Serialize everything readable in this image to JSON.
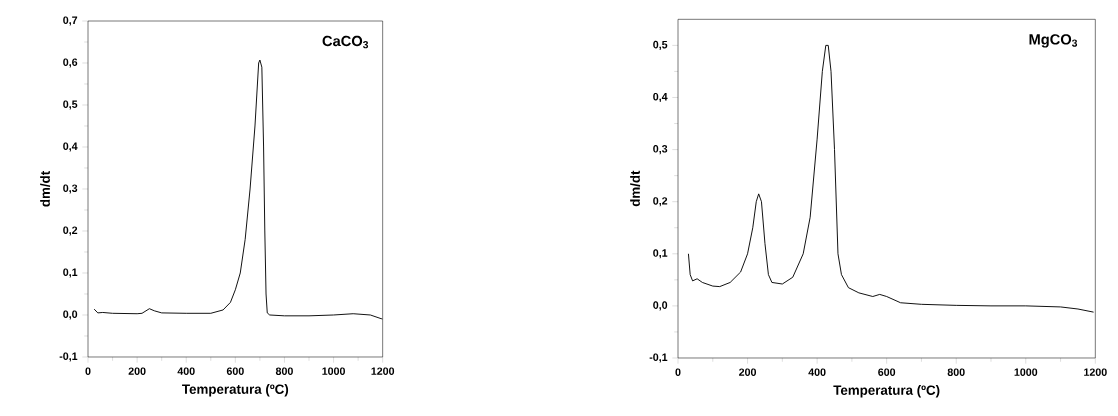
{
  "chart_data": [
    {
      "type": "line",
      "title": "CaCO$_{3}$",
      "xlabel": "Temperatura (ºC)",
      "ylabel": "dm/dt",
      "xlim": [
        0,
        1200
      ],
      "ylim": [
        -0.1,
        0.7
      ],
      "xticks": [
        0,
        200,
        400,
        600,
        800,
        1000,
        1200
      ],
      "yticks": [
        {
          "value": -0.1,
          "label": "-0,1"
        },
        {
          "value": 0,
          "label": "0,0"
        },
        {
          "value": 0.1,
          "label": "0,1"
        },
        {
          "value": 0.2,
          "label": "0,2"
        },
        {
          "value": 0.3,
          "label": "0,3"
        },
        {
          "value": 0.4,
          "label": "0,4"
        },
        {
          "value": 0.5,
          "label": "0,5"
        },
        {
          "value": 0.6,
          "label": "0,6"
        },
        {
          "value": 0.7,
          "label": "0,7"
        }
      ],
      "grid": false,
      "marker": "none",
      "line_style": "solid",
      "series": [
        {
          "color": "#000000",
          "x": [
            25,
            40,
            60,
            100,
            200,
            220,
            250,
            270,
            300,
            400,
            500,
            550,
            580,
            600,
            620,
            640,
            660,
            680,
            695,
            700,
            708,
            715,
            720,
            725,
            730,
            740,
            800,
            900,
            1000,
            1080,
            1150,
            1200
          ],
          "values": [
            0.014,
            0.005,
            0.006,
            0.004,
            0.003,
            0.004,
            0.015,
            0.01,
            0.005,
            0.004,
            0.004,
            0.012,
            0.03,
            0.06,
            0.1,
            0.18,
            0.3,
            0.45,
            0.6,
            0.607,
            0.59,
            0.4,
            0.2,
            0.05,
            0.005,
            0.0,
            -0.002,
            -0.002,
            0.0,
            0.003,
            0.0,
            -0.01
          ]
        }
      ]
    },
    {
      "type": "line",
      "title": "MgCO$_{3}$",
      "xlabel": "Temperatura (ºC)",
      "ylabel": "dm/dt",
      "xlim": [
        0,
        1200
      ],
      "ylim": [
        -0.1,
        0.55
      ],
      "xticks": [
        0,
        200,
        400,
        600,
        800,
        1000,
        1200
      ],
      "yticks": [
        {
          "value": -0.1,
          "label": "-0,1"
        },
        {
          "value": 0,
          "label": "0,0"
        },
        {
          "value": 0.1,
          "label": "0,1"
        },
        {
          "value": 0.2,
          "label": "0,2"
        },
        {
          "value": 0.3,
          "label": "0,3"
        },
        {
          "value": 0.4,
          "label": "0,4"
        },
        {
          "value": 0.5,
          "label": "0,5"
        }
      ],
      "grid": false,
      "marker": "none",
      "line_style": "solid",
      "series": [
        {
          "color": "#000000",
          "x": [
            30,
            35,
            42,
            55,
            70,
            100,
            120,
            150,
            180,
            200,
            215,
            225,
            232,
            240,
            250,
            260,
            270,
            300,
            330,
            360,
            380,
            400,
            415,
            425,
            432,
            440,
            450,
            460,
            470,
            490,
            520,
            560,
            580,
            600,
            640,
            700,
            800,
            900,
            1000,
            1100,
            1150,
            1195
          ],
          "values": [
            0.1,
            0.06,
            0.048,
            0.052,
            0.045,
            0.038,
            0.037,
            0.045,
            0.065,
            0.1,
            0.15,
            0.2,
            0.215,
            0.2,
            0.12,
            0.06,
            0.045,
            0.042,
            0.055,
            0.1,
            0.17,
            0.32,
            0.45,
            0.5,
            0.5,
            0.45,
            0.3,
            0.1,
            0.06,
            0.035,
            0.025,
            0.018,
            0.022,
            0.018,
            0.006,
            0.003,
            0.001,
            0.0,
            0.0,
            -0.002,
            -0.006,
            -0.012
          ]
        }
      ]
    }
  ]
}
